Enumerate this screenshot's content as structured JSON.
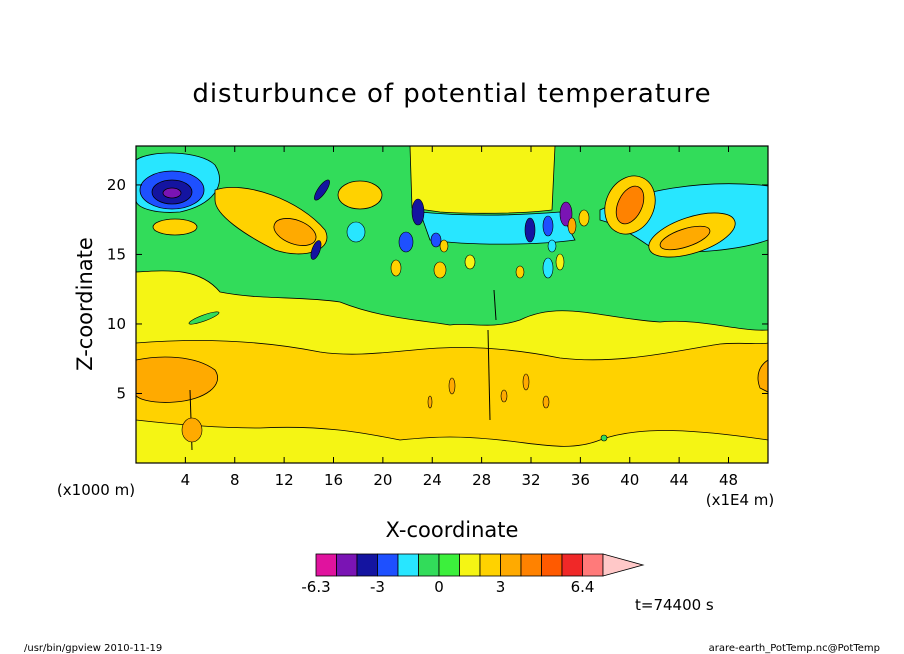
{
  "chart_data": {
    "type": "heatmap",
    "title": "disturbunce of potential temperature",
    "xlabel": "X-coordinate",
    "ylabel": "Z-coordinate",
    "x_unit": "(x1E4 m)",
    "y_unit": "(x1000 m)",
    "x_range": [
      0,
      51.2
    ],
    "y_range": [
      0,
      22.8
    ],
    "x_ticks": [
      4,
      8,
      12,
      16,
      20,
      24,
      28,
      32,
      36,
      40,
      44,
      48
    ],
    "y_ticks": [
      5,
      10,
      15,
      20
    ],
    "colorbar": {
      "colors": [
        "#e0139e",
        "#7a14b4",
        "#1414a0",
        "#1e50ff",
        "#28e6ff",
        "#32dc5a",
        "#3cf03c",
        "#f5f514",
        "#ffd200",
        "#ffaa00",
        "#ff8200",
        "#ff5a00",
        "#f02828",
        "#ff7a7a",
        "#ffc8c8"
      ],
      "tick_labels": [
        "-6.3",
        "-3",
        "0",
        "3",
        "6.4"
      ],
      "tick_index": [
        0,
        3,
        6,
        9,
        13
      ]
    },
    "field_features": [
      {
        "region": "background-upper",
        "level": 5
      },
      {
        "region": "background-middle",
        "level": 7
      },
      {
        "region": "warm-band-z7",
        "level": 8
      },
      {
        "region": "cold-core-x3-z19",
        "level": 1
      },
      {
        "region": "warm-wave-x11-z17",
        "level": 9
      },
      {
        "region": "warm-wave-x42-z17",
        "level": 9
      }
    ]
  },
  "time_label": "t=74400 s",
  "footer": {
    "left": "/usr/bin/gpview  2010-11-19",
    "right": "arare-earth_PotTemp.nc@PotTemp"
  }
}
